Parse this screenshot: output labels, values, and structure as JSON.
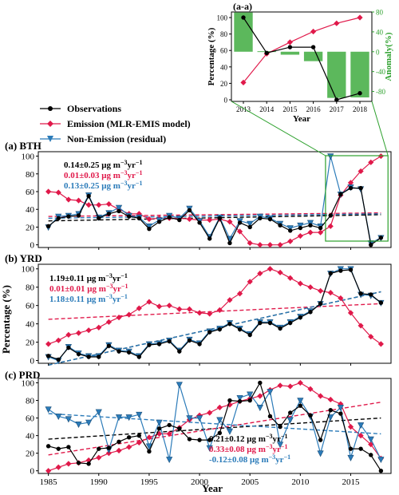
{
  "colors": {
    "observations": "#000000",
    "emission": "#e0194a",
    "non_emission": "#2b7bb9",
    "anomaly_bar": "#5cb85c",
    "anomaly_axis": "#2ca02c",
    "inset_frame": "#2ca02c"
  },
  "legend": {
    "observations": "Observations",
    "emission": "Emission (MLR-EMIS model)",
    "non_emission": "Non-Emission (residual)"
  },
  "shared": {
    "xlabel": "Year",
    "ylabel": "Percentage (%)",
    "x_ticks": [
      "1985",
      "1990",
      "1995",
      "2000",
      "2005",
      "2010",
      "2015"
    ],
    "y_ticks": [
      "0",
      "20",
      "40",
      "60",
      "80",
      "100"
    ]
  },
  "inset_labels": {
    "title": "(a-a)",
    "xlabel": "Year",
    "ylabel_left": "Percentage (%)",
    "ylabel_right": "Anomaly(%)",
    "left_ticks": [
      "0",
      "20",
      "40",
      "60",
      "80",
      "100"
    ],
    "right_ticks": [
      "-80",
      "-40",
      "0",
      "40",
      "80"
    ],
    "x_ticks": [
      "2013",
      "2014",
      "2015",
      "2016",
      "2017",
      "2018"
    ]
  },
  "chart_data": [
    {
      "type": "line",
      "title": "(a-a)",
      "xlabel": "Year",
      "ylabel": "Percentage (%)",
      "ylabel_right": "Anomaly(%)",
      "x": [
        2013,
        2014,
        2015,
        2016,
        2017,
        2018
      ],
      "ylim": [
        0,
        100
      ],
      "ylim_right": [
        -100,
        80
      ],
      "series": [
        {
          "name": "Observations",
          "values": [
            100,
            57,
            64,
            64,
            0,
            8
          ]
        },
        {
          "name": "Emission (MLR-EMIS model)",
          "values": [
            21,
            56,
            70,
            83,
            93,
            100
          ]
        }
      ],
      "anomaly_bars": [
        79,
        1,
        -6,
        -19,
        -93,
        -92
      ]
    },
    {
      "type": "line",
      "title": "(a) BTH",
      "xlabel": "Year",
      "ylabel": "Percentage (%)",
      "xlim": [
        1984,
        2019
      ],
      "ylim": [
        -3,
        105
      ],
      "x": [
        1985,
        1986,
        1987,
        1988,
        1989,
        1990,
        1991,
        1992,
        1993,
        1994,
        1995,
        1996,
        1997,
        1998,
        1999,
        2000,
        2001,
        2002,
        2003,
        2004,
        2005,
        2006,
        2007,
        2008,
        2009,
        2010,
        2011,
        2012,
        2013,
        2014,
        2015,
        2016,
        2017,
        2018
      ],
      "series": [
        {
          "name": "Observations",
          "values": [
            21,
            30,
            32,
            33,
            55,
            30,
            35,
            38,
            32,
            30,
            18,
            26,
            31,
            28,
            39,
            25,
            7,
            30,
            2,
            25,
            20,
            30,
            29,
            22,
            16,
            19,
            22,
            19,
            33,
            57,
            64,
            64,
            0,
            8
          ]
        },
        {
          "name": "Emission (MLR-EMIS model)",
          "values": [
            60,
            59,
            51,
            50,
            45,
            45,
            46,
            40,
            35,
            35,
            29,
            30,
            30,
            30,
            29,
            28,
            28,
            29,
            26,
            15,
            2,
            0,
            0,
            0,
            4,
            10,
            14,
            14,
            21,
            56,
            70,
            83,
            93,
            100
          ]
        },
        {
          "name": "Non-Emission (residual)",
          "values": [
            20,
            32,
            33,
            35,
            56,
            31,
            36,
            42,
            33,
            31,
            21,
            28,
            33,
            30,
            41,
            27,
            9,
            31,
            7,
            27,
            24,
            32,
            30,
            24,
            19,
            22,
            25,
            21,
            100,
            57,
            65,
            63,
            2,
            8
          ]
        }
      ],
      "trend_lines": [
        {
          "series": "Observations",
          "start": 27,
          "end": 34
        },
        {
          "series": "Emission (MLR-EMIS model)",
          "start": 32,
          "end": 36
        },
        {
          "series": "Non-Emission (residual)",
          "start": 30,
          "end": 35
        }
      ],
      "annotations": [
        {
          "series": "Observations",
          "value": "0.14±0.25",
          "unit": "μg m",
          "sup1": "−3",
          "unit2": "yr",
          "sup2": "−1"
        },
        {
          "series": "Emission (MLR-EMIS model)",
          "value": "0.01±0.03",
          "unit": "μg m",
          "sup1": "−3",
          "unit2": "yr",
          "sup2": "−1"
        },
        {
          "series": "Non-Emission (residual)",
          "value": "0.13±0.25",
          "unit": "μg m",
          "sup1": "−3",
          "unit2": "yr",
          "sup2": "−1"
        }
      ]
    },
    {
      "type": "line",
      "title": "(b) YRD",
      "xlabel": "Year",
      "ylabel": "Percentage (%)",
      "xlim": [
        1984,
        2019
      ],
      "ylim": [
        -3,
        105
      ],
      "x": [
        1985,
        1986,
        1987,
        1988,
        1989,
        1990,
        1991,
        1992,
        1993,
        1994,
        1995,
        1996,
        1997,
        1998,
        1999,
        2000,
        2001,
        2002,
        2003,
        2004,
        2005,
        2006,
        2007,
        2008,
        2009,
        2010,
        2011,
        2012,
        2013,
        2014,
        2015,
        2016,
        2017,
        2018
      ],
      "series": [
        {
          "name": "Observations",
          "values": [
            5,
            1,
            14,
            7,
            4,
            4,
            16,
            10,
            9,
            4,
            17,
            18,
            21,
            10,
            22,
            18,
            31,
            34,
            40,
            34,
            28,
            41,
            41,
            35,
            41,
            47,
            53,
            62,
            95,
            98,
            99,
            73,
            72,
            63
          ]
        },
        {
          "name": "Emission (MLR-EMIS model)",
          "values": [
            18,
            22,
            28,
            30,
            33,
            36,
            42,
            47,
            50,
            57,
            64,
            59,
            60,
            56,
            56,
            52,
            51,
            55,
            66,
            73,
            86,
            95,
            100,
            96,
            90,
            84,
            80,
            76,
            74,
            68,
            52,
            38,
            26,
            18
          ]
        },
        {
          "name": "Non-Emission (residual)",
          "values": [
            4,
            0,
            15,
            8,
            5,
            5,
            17,
            11,
            10,
            5,
            18,
            19,
            22,
            11,
            23,
            19,
            32,
            35,
            41,
            35,
            29,
            42,
            42,
            36,
            42,
            48,
            54,
            62,
            95,
            100,
            100,
            72,
            71,
            63
          ]
        }
      ],
      "trend_lines": [
        {
          "series": "Observations",
          "start": -5,
          "end": 75
        },
        {
          "series": "Emission (MLR-EMIS model)",
          "start": 45,
          "end": 62
        },
        {
          "series": "Non-Emission (residual)",
          "start": -5,
          "end": 75
        }
      ],
      "annotations": [
        {
          "series": "Observations",
          "value": "1.19±0.11",
          "unit": "μg m",
          "sup1": "−3",
          "unit2": "yr",
          "sup2": "−1"
        },
        {
          "series": "Emission (MLR-EMIS model)",
          "value": "0.01±0.01",
          "unit": "μg m",
          "sup1": "−3",
          "unit2": "yr",
          "sup2": "−1"
        },
        {
          "series": "Non-Emission (residual)",
          "value": "1.18±0.11",
          "unit": "μg m",
          "sup1": "−3",
          "unit2": "yr",
          "sup2": "−1"
        }
      ]
    },
    {
      "type": "line",
      "title": "(c) PRD",
      "xlabel": "Year",
      "ylabel": "Percentage (%)",
      "xlim": [
        1984,
        2019
      ],
      "ylim": [
        -3,
        105
      ],
      "x": [
        1985,
        1986,
        1987,
        1988,
        1989,
        1990,
        1991,
        1992,
        1993,
        1994,
        1995,
        1996,
        1997,
        1998,
        1999,
        2000,
        2001,
        2002,
        2003,
        2004,
        2005,
        2006,
        2007,
        2008,
        2009,
        2010,
        2011,
        2012,
        2013,
        2014,
        2015,
        2016,
        2017,
        2018
      ],
      "series": [
        {
          "name": "Observations",
          "values": [
            28,
            25,
            27,
            9,
            8,
            25,
            26,
            33,
            38,
            40,
            22,
            48,
            52,
            48,
            36,
            35,
            35,
            43,
            80,
            79,
            80,
            100,
            62,
            50,
            66,
            74,
            63,
            35,
            69,
            65,
            25,
            25,
            18,
            0
          ]
        },
        {
          "name": "Emission (MLR-EMIS model)",
          "values": [
            0,
            4,
            8,
            9,
            12,
            15,
            20,
            23,
            27,
            32,
            38,
            42,
            42,
            49,
            58,
            63,
            66,
            72,
            75,
            79,
            82,
            85,
            92,
            97,
            96,
            100,
            93,
            85,
            81,
            76,
            50,
            40,
            30,
            14
          ]
        },
        {
          "name": "Non-Emission (residual)",
          "values": [
            70,
            62,
            59,
            53,
            55,
            67,
            24,
            61,
            61,
            64,
            28,
            55,
            13,
            98,
            60,
            60,
            26,
            58,
            45,
            83,
            87,
            72,
            90,
            30,
            58,
            80,
            62,
            20,
            61,
            72,
            15,
            52,
            36,
            13
          ]
        }
      ],
      "trend_lines": [
        {
          "series": "Observations",
          "start": 36,
          "end": 60
        },
        {
          "series": "Emission (MLR-EMIS model)",
          "start": 18,
          "end": 78
        },
        {
          "series": "Non-Emission (residual)",
          "start": 65,
          "end": 42
        }
      ],
      "annotations": [
        {
          "series": "Observations",
          "value": "0.21±0.12",
          "unit": "μg m",
          "sup1": "−3",
          "unit2": "yr",
          "sup2": "−1"
        },
        {
          "series": "Emission (MLR-EMIS model)",
          "value": "0.33±0.08",
          "unit": "μg m",
          "sup1": "−3",
          "unit2": "yr",
          "sup2": "−1"
        },
        {
          "series": "Non-Emission (residual)",
          "value": "-0.12±0.08",
          "unit": "μg m",
          "sup1": "−3",
          "unit2": "yr",
          "sup2": "−1"
        }
      ]
    }
  ]
}
